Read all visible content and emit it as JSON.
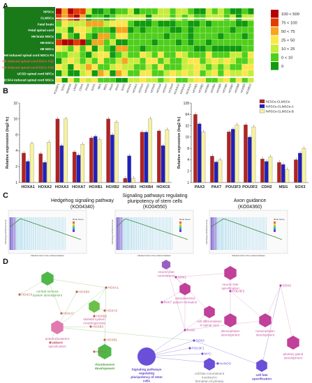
{
  "panels": {
    "a": "A",
    "b": "B",
    "c": "C",
    "d": "D"
  },
  "heatmap": {
    "rows": [
      "hPSCs",
      "CLMSCs",
      "Fetal brain",
      "Fetal spinal cord",
      "H9 brain NSCs",
      "H9 ESCs",
      "H9 NSCs",
      "H9 induced spinal cord NSCs P4",
      "H9 induced spinal cord NSCs P12",
      "H9 induced spinal cord NSCs P19",
      "UCSD spinal cord NPCs",
      "UCSF4 induced spinal cord NSCs"
    ],
    "row_colors": [
      "#ffffff",
      "#ffffff",
      "#ffffff",
      "#ffffff",
      "#ffffff",
      "#ffffff",
      "#ffffff",
      "#ffffff",
      "#ff5a5a",
      "#ff5a5a",
      "#ffffff",
      "#ffffff"
    ],
    "columns": [
      "POU5F1",
      "SOX2",
      "NANOG",
      "LIN28",
      "CDH1",
      "PAX6",
      "SOX1",
      "NES",
      "MSI1",
      "PAX3",
      "PAX7",
      "SOX3",
      "HOXA1",
      "HOXA2",
      "HOXA3",
      "HOXA4",
      "HOXA5",
      "HOXA6",
      "HOXA7",
      "HOXA9",
      "HOXA10",
      "HOXA11",
      "HOXA13",
      "HOXB1",
      "HOXB2",
      "HOXB3",
      "HOXB4",
      "HOXB5",
      "HOXB6",
      "HOXB7",
      "HOXB8",
      "HOXB9",
      "HOXB13"
    ],
    "legend": [
      "100 < 500",
      "75 < 100",
      "50 < 75",
      "25 < 50",
      "10 < 25",
      "0 < 10",
      "0"
    ],
    "legend_colors": [
      "#b50000",
      "#e23c00",
      "#f5a51e",
      "#fde64b",
      "#c7ed3a",
      "#4fcf1b",
      "#109a10"
    ]
  },
  "chart_data": [
    {
      "type": "bar",
      "title": "",
      "ylabel": "Relative expression (log2 fc)",
      "ylim": [
        0,
        32
      ],
      "yticks": [
        1,
        2,
        4,
        8,
        16,
        32
      ],
      "categories": [
        "HOXA1",
        "HOXA2",
        "HOXA3",
        "HOXA7",
        "HOXB1",
        "HOXB2",
        "HOXB3",
        "HOXB4",
        "HOXC6"
      ],
      "series": [
        {
          "name": "hESCs-CLMSCs",
          "color": "#b22222",
          "values": [
            3.6,
            3.5,
            16,
            3.8,
            7,
            16,
            1.2,
            9,
            9.5
          ]
        },
        {
          "name": "hiPSCs-CLMSCs-A",
          "color": "#1f1fbf",
          "values": [
            2.5,
            2.4,
            5,
            3.3,
            7.5,
            8,
            3.2,
            9,
            5
          ]
        },
        {
          "name": "hiPSCs-CLMSCs-B",
          "color": "#f7f2a0",
          "values": [
            5.5,
            5.8,
            16,
            5.3,
            6.5,
            14,
            1.2,
            16,
            10
          ]
        }
      ]
    },
    {
      "type": "bar",
      "title": "",
      "ylabel": "Relative expression (log2 fc)",
      "ylim": [
        0,
        128
      ],
      "yticks": [
        1,
        2,
        4,
        8,
        16,
        32,
        64,
        128
      ],
      "categories": [
        "PAX3",
        "PAX7",
        "POU3F3",
        "POU3F2",
        "CDH2",
        "MSI1",
        "SOX3"
      ],
      "series": [
        {
          "name": "hESCs-CLMSCs",
          "color": "#b22222",
          "values": [
            64,
            5,
            22,
            34,
            4.2,
            3.4,
            4
          ]
        },
        {
          "name": "hiPSCs-CLMSCs-A",
          "color": "#1f1fbf",
          "values": [
            36,
            3.5,
            26,
            16,
            3.6,
            3,
            6
          ]
        },
        {
          "name": "hiPSCs-CLMSCs-B",
          "color": "#f7f2a0",
          "values": [
            22,
            4,
            34,
            30,
            4.8,
            2.2,
            8
          ]
        }
      ]
    }
  ],
  "gsea": [
    {
      "title": "Hedgehog signaling pathway",
      "code": "(KO04340)",
      "ylabel": "Running enrichment score",
      "xlabel": "Ranked rank in the ordered dataset",
      "legend_title": "Rank Score"
    },
    {
      "title": "Signaling pathways regulating pluripotency of stem cells",
      "code": "(KO04550)",
      "ylabel": "Running enrichment score",
      "xlabel": "Ranked rank in the ordered dataset",
      "legend_title": "Rank Score"
    },
    {
      "title": "Axon guidance",
      "code": "(KO04360)",
      "ylabel": "Running enrichment score",
      "xlabel": "Ranked rank in the ordered dataset",
      "legend_title": "Rank Score"
    }
  ],
  "network": {
    "terms": [
      {
        "label": "central nervous system development",
        "color": "#4fb848",
        "shape": "hexagon"
      },
      {
        "label": "rhombomere development",
        "color": "#4fb848",
        "shape": "hexagon"
      },
      {
        "label": "skeletal system morphogenesis",
        "color": "#6cc04a",
        "shape": "hexagon"
      },
      {
        "label": "anterior/posterior pattern specification",
        "color": "#e07ab0",
        "shape": "hexagon"
      },
      {
        "label": "Signaling pathways regulating pluripotency of stem cells",
        "color": "#6b4fd8",
        "shape": "circle"
      },
      {
        "label": "neuron fate specification",
        "color": "#c0409a",
        "shape": "hexagon"
      },
      {
        "label": "dorsal/ventral pattern formation",
        "color": "#c0409a",
        "shape": "hexagon"
      },
      {
        "label": "cell differentiation in spinal cord",
        "color": "#c0409a",
        "shape": "hexagon"
      },
      {
        "label": "diencephalon development",
        "color": "#c0409a",
        "shape": "hexagon"
      },
      {
        "label": "mesenphalon development",
        "color": "#c0409a",
        "shape": "hexagon"
      },
      {
        "label": "pituitary gland development",
        "color": "#c0409a",
        "shape": "hexagon"
      },
      {
        "label": "neuron fate commitment",
        "color": "#9b5fc0",
        "shape": "hexagon"
      },
      {
        "label": "cell fate specification",
        "color": "#6b4fd8",
        "shape": "hexagon"
      },
      {
        "label": "cell fate commitment involved in formation of primary germ layer",
        "color": "#6b4fd8",
        "shape": "hexagon"
      }
    ],
    "genes": [
      "HOXA1",
      "HOXA3",
      "HOXB2",
      "HOXB3",
      "HOXB1",
      "HOXA2",
      "HOXB4",
      "HOXA4",
      "HOXC4",
      "HOXA7",
      "SOX1",
      "PAX7",
      "PAX6",
      "SOX2",
      "POU3F1",
      "MYC",
      "NANOG",
      "POU3F2",
      "SOX3"
    ]
  }
}
